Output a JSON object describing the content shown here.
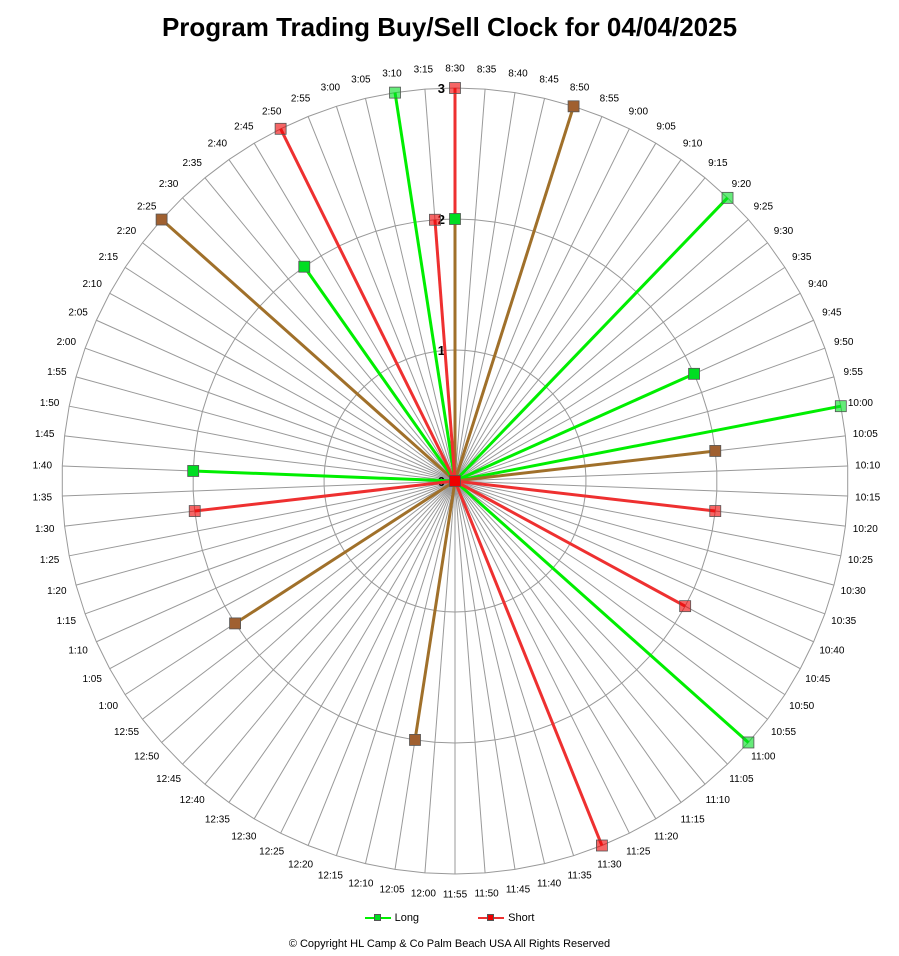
{
  "title": "Program Trading Buy/Sell Clock  for  04/04/2025",
  "copyright": "© Copyright  HL Camp & Co  Palm Beach  USA  All Rights Reserved",
  "legend": {
    "long": "Long",
    "short": "Short"
  },
  "colors": {
    "long_line": "#00ee00",
    "long_marker": "#00dd22",
    "short_line": "#ee3030",
    "short_marker": "#ee0000",
    "mixed_line": "#a0702a",
    "mixed_marker": "#a06030",
    "grid": "#999999"
  },
  "chart_data": {
    "type": "radar",
    "title": "Program Trading Buy/Sell Clock  for  04/04/2025",
    "rlim": [
      0,
      3
    ],
    "r_ticks": [
      "0",
      "1",
      "2",
      "3"
    ],
    "categories": [
      "8:30",
      "8:35",
      "8:40",
      "8:45",
      "8:50",
      "8:55",
      "9:00",
      "9:05",
      "9:10",
      "9:15",
      "9:20",
      "9:25",
      "9:30",
      "9:35",
      "9:40",
      "9:45",
      "9:50",
      "9:55",
      "10:00",
      "10:05",
      "10:10",
      "10:15",
      "10:20",
      "10:25",
      "10:30",
      "10:35",
      "10:40",
      "10:45",
      "10:50",
      "10:55",
      "11:00",
      "11:05",
      "11:10",
      "11:15",
      "11:20",
      "11:25",
      "11:30",
      "11:35",
      "11:40",
      "11:45",
      "11:50",
      "11:55",
      "12:00",
      "12:05",
      "12:10",
      "12:15",
      "12:20",
      "12:25",
      "12:30",
      "12:35",
      "12:40",
      "12:45",
      "12:50",
      "12:55",
      "1:00",
      "1:05",
      "1:10",
      "1:15",
      "1:20",
      "1:25",
      "1:30",
      "1:35",
      "1:40",
      "1:45",
      "1:50",
      "1:55",
      "2:00",
      "2:05",
      "2:10",
      "2:15",
      "2:20",
      "2:25",
      "2:30",
      "2:35",
      "2:40",
      "2:45",
      "2:50",
      "2:55",
      "3:00",
      "3:05",
      "3:10",
      "3:15"
    ],
    "series": [
      {
        "name": "Long",
        "points": [
          {
            "time": "8:30",
            "value": 2
          },
          {
            "time": "8:50",
            "value": 3
          },
          {
            "time": "9:20",
            "value": 3
          },
          {
            "time": "9:45",
            "value": 2
          },
          {
            "time": "10:00",
            "value": 3
          },
          {
            "time": "10:05",
            "value": 2
          },
          {
            "time": "11:00",
            "value": 3
          },
          {
            "time": "12:05",
            "value": 2
          },
          {
            "time": "1:00",
            "value": 2
          },
          {
            "time": "1:40",
            "value": 2
          },
          {
            "time": "2:25",
            "value": 3
          },
          {
            "time": "2:40",
            "value": 2
          },
          {
            "time": "3:10",
            "value": 3
          }
        ]
      },
      {
        "name": "Short",
        "points": [
          {
            "time": "8:30",
            "value": 3
          },
          {
            "time": "8:50",
            "value": 3
          },
          {
            "time": "10:05",
            "value": 2
          },
          {
            "time": "10:20",
            "value": 2
          },
          {
            "time": "10:45",
            "value": 2
          },
          {
            "time": "11:30",
            "value": 3
          },
          {
            "time": "12:05",
            "value": 2
          },
          {
            "time": "1:00",
            "value": 2
          },
          {
            "time": "1:30",
            "value": 2
          },
          {
            "time": "2:25",
            "value": 3
          },
          {
            "time": "2:50",
            "value": 3
          },
          {
            "time": "3:15",
            "value": 2
          }
        ]
      }
    ]
  }
}
